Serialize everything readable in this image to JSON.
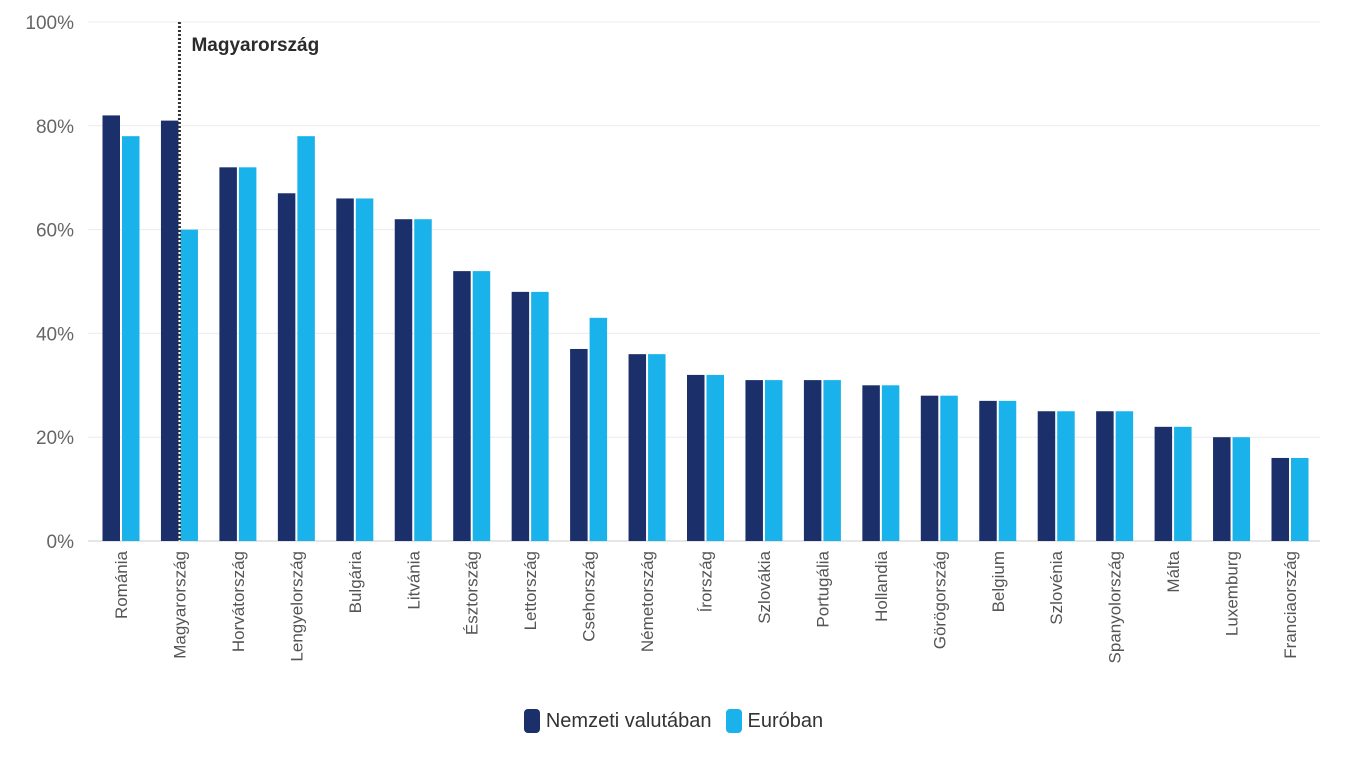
{
  "chart_data": {
    "type": "bar",
    "title": "",
    "xlabel": "",
    "ylabel": "",
    "ylim": [
      0,
      100
    ],
    "yticks": [
      0,
      20,
      40,
      60,
      80,
      100
    ],
    "ytick_labels": [
      "0%",
      "20%",
      "40%",
      "60%",
      "80%",
      "100%"
    ],
    "grid": true,
    "legend_position": "bottom-center",
    "categories": [
      "Románia",
      "Magyarország",
      "Horvátország",
      "Lengyelország",
      "Bulgária",
      "Litvánia",
      "Észtország",
      "Lettország",
      "Csehország",
      "Németország",
      "Írország",
      "Szlovákia",
      "Portugália",
      "Hollandia",
      "Görögország",
      "Belgium",
      "Szlovénia",
      "Spanyolország",
      "Málta",
      "Luxemburg",
      "Franciaország"
    ],
    "series": [
      {
        "name": "Nemzeti valutában",
        "color": "#1b2f6b",
        "values": [
          82,
          81,
          72,
          67,
          66,
          62,
          52,
          48,
          37,
          36,
          32,
          31,
          31,
          30,
          28,
          27,
          25,
          25,
          22,
          20,
          16
        ]
      },
      {
        "name": "Euróban",
        "color": "#1ab2ea",
        "values": [
          78,
          60,
          72,
          78,
          66,
          62,
          52,
          48,
          43,
          36,
          32,
          31,
          31,
          30,
          28,
          27,
          25,
          25,
          22,
          20,
          16
        ]
      }
    ],
    "annotation": {
      "label": "Magyarország",
      "category": "Magyarország"
    }
  }
}
